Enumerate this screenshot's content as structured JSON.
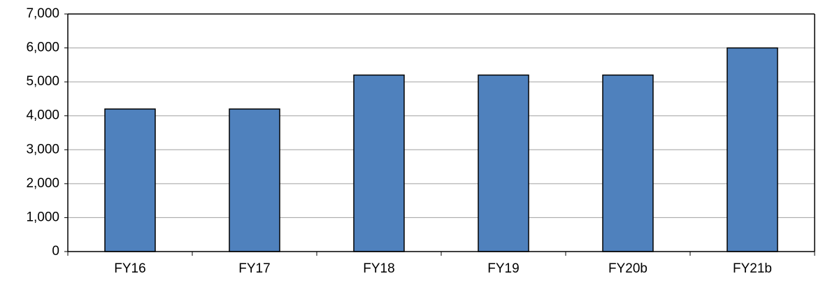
{
  "chart_data": {
    "type": "bar",
    "categories": [
      "FY16",
      "FY17",
      "FY18",
      "FY19",
      "FY20b",
      "FY21b"
    ],
    "values": [
      4200,
      4200,
      5200,
      5200,
      5200,
      6000
    ],
    "color": "#4f81bd",
    "ylim": [
      0,
      7000
    ],
    "yticks": [
      0,
      {
        "value": 1000,
        "label": "1,000"
      },
      {
        "value": 2000,
        "label": "2,000"
      },
      {
        "value": 3000,
        "label": "3,000"
      },
      {
        "value": 4000,
        "label": "4,000"
      },
      {
        "value": 5000,
        "label": "5,000"
      },
      {
        "value": 6000,
        "label": "6,000"
      },
      {
        "value": 7000,
        "label": "7,000"
      }
    ],
    "grid": true
  }
}
